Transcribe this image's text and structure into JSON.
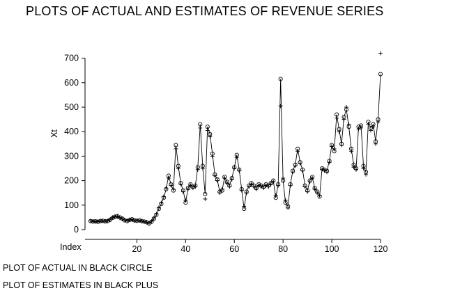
{
  "page": {
    "captions": [
      "PLOT OF ACTUAL IN BLACK CIRCLE",
      "PLOT OF ESTIMATES IN BLACK PLUS"
    ]
  },
  "chart_data": {
    "type": "line",
    "title": "PLOTS OF ACTUAL AND ESTIMATES OF REVENUE SERIES",
    "xlabel": "Index",
    "ylabel": "Xt",
    "x_start": 1,
    "xlim": [
      1,
      120
    ],
    "ylim": [
      0,
      720
    ],
    "x_ticks": [
      20,
      40,
      60,
      80,
      100,
      120
    ],
    "y_ticks": [
      0,
      100,
      200,
      300,
      400,
      500,
      600,
      700
    ],
    "grid": false,
    "legend_position": "below-as-captions",
    "colors": {
      "line": "#000000",
      "marker": "#000000",
      "background": "#ffffff"
    },
    "series": [
      {
        "name": "Actual",
        "marker": "circle",
        "values": [
          35,
          33,
          34,
          32,
          35,
          36,
          34,
          35,
          40,
          48,
          52,
          55,
          50,
          45,
          38,
          35,
          40,
          42,
          38,
          36,
          38,
          35,
          33,
          30,
          25,
          32,
          45,
          60,
          85,
          105,
          130,
          165,
          220,
          185,
          160,
          345,
          260,
          190,
          160,
          110,
          170,
          185,
          175,
          180,
          255,
          430,
          260,
          145,
          420,
          390,
          310,
          225,
          205,
          155,
          160,
          215,
          195,
          180,
          210,
          255,
          305,
          245,
          165,
          85,
          155,
          180,
          190,
          180,
          170,
          185,
          180,
          175,
          185,
          180,
          190,
          200,
          130,
          185,
          615,
          200,
          110,
          95,
          185,
          240,
          265,
          330,
          275,
          245,
          180,
          160,
          200,
          215,
          170,
          155,
          135,
          250,
          245,
          240,
          280,
          345,
          320,
          470,
          410,
          350,
          460,
          490,
          420,
          330,
          265,
          250,
          420,
          425,
          260,
          235,
          440,
          415,
          430,
          360,
          450,
          635
        ]
      },
      {
        "name": "Estimates",
        "marker": "plus",
        "values": [
          36,
          34,
          33,
          33,
          36,
          35,
          35,
          36,
          42,
          50,
          54,
          53,
          48,
          43,
          40,
          36,
          41,
          40,
          37,
          37,
          37,
          34,
          32,
          31,
          27,
          34,
          48,
          65,
          90,
          110,
          135,
          170,
          210,
          180,
          165,
          330,
          250,
          185,
          155,
          120,
          165,
          180,
          170,
          175,
          245,
          415,
          250,
          125,
          405,
          380,
          300,
          220,
          200,
          150,
          165,
          210,
          190,
          175,
          205,
          250,
          295,
          240,
          160,
          95,
          150,
          175,
          185,
          175,
          165,
          180,
          175,
          170,
          180,
          175,
          185,
          195,
          140,
          180,
          505,
          210,
          120,
          88,
          180,
          235,
          260,
          320,
          270,
          240,
          175,
          155,
          195,
          210,
          165,
          150,
          140,
          245,
          240,
          235,
          275,
          340,
          330,
          455,
          400,
          345,
          450,
          500,
          430,
          320,
          255,
          245,
          410,
          415,
          250,
          225,
          430,
          405,
          420,
          350,
          440,
          720
        ]
      }
    ]
  }
}
